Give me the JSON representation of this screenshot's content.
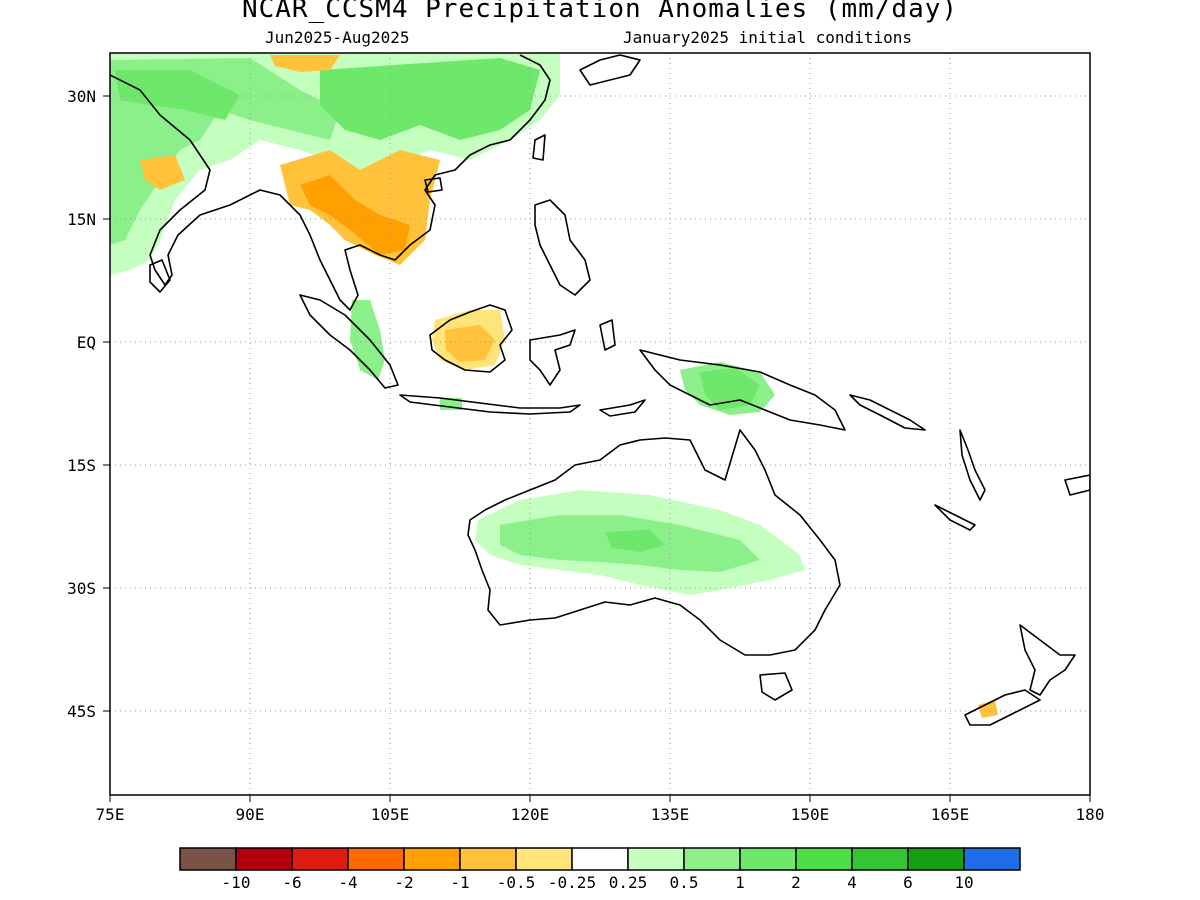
{
  "title": "NCAR_CCSM4 Precipitation Anomalies (mm/day)",
  "subtitle_left": "Jun2025-Aug2025",
  "subtitle_right": "January2025 initial conditions",
  "map": {
    "lon_range": [
      75,
      180
    ],
    "lat_range": [
      -49,
      35
    ],
    "lon_ticks": [
      "75E",
      "90E",
      "105E",
      "120E",
      "135E",
      "150E",
      "165E",
      "180"
    ],
    "lon_tick_values": [
      75,
      90,
      105,
      120,
      135,
      150,
      165,
      180
    ],
    "lat_ticks": [
      "30N",
      "15N",
      "EQ",
      "15S",
      "30S",
      "45S"
    ],
    "lat_tick_values": [
      30,
      15,
      0,
      -15,
      -30,
      -45
    ],
    "gridlines": "dotted",
    "land_color": "#ffffff",
    "coastline_color": "#000000"
  },
  "colorbar": {
    "colors": [
      "#7a5248",
      "#b4000c",
      "#e01c12",
      "#ff6a00",
      "#ffa000",
      "#ffc23a",
      "#ffe47a",
      "#ffffff",
      "#c4ffc0",
      "#8cf08a",
      "#6ee86a",
      "#4ae046",
      "#34c434",
      "#14a014",
      "#1e6ce8"
    ],
    "labels": [
      "-10",
      "-6",
      "-4",
      "-2",
      "-1",
      "-0.5",
      "-0.25",
      "0.25",
      "0.5",
      "1",
      "2",
      "4",
      "6",
      "10"
    ]
  },
  "anomaly_regions": [
    {
      "name": "australia-interior-wet",
      "value": "0.25 to 1",
      "color": "#c4ffc0"
    },
    {
      "name": "australia-center-wet",
      "value": "0.5 to 1",
      "color": "#8cf08a"
    },
    {
      "name": "new-guinea-wet",
      "value": "1 to 2",
      "color": "#6ee86a"
    },
    {
      "name": "south-china-wet",
      "value": "1 to 2",
      "color": "#6ee86a"
    },
    {
      "name": "india-wet",
      "value": "0.5 to 2",
      "color": "#8cf08a"
    },
    {
      "name": "indochina-dry",
      "value": "-1 to -2",
      "color": "#ffa000"
    },
    {
      "name": "borneo-dry",
      "value": "-0.5 to -1",
      "color": "#ffc23a"
    },
    {
      "name": "sumatra-wet",
      "value": "0.5 to 1",
      "color": "#8cf08a"
    },
    {
      "name": "new-zealand-dry",
      "value": "-0.25 to -1",
      "color": "#ffc23a"
    }
  ]
}
